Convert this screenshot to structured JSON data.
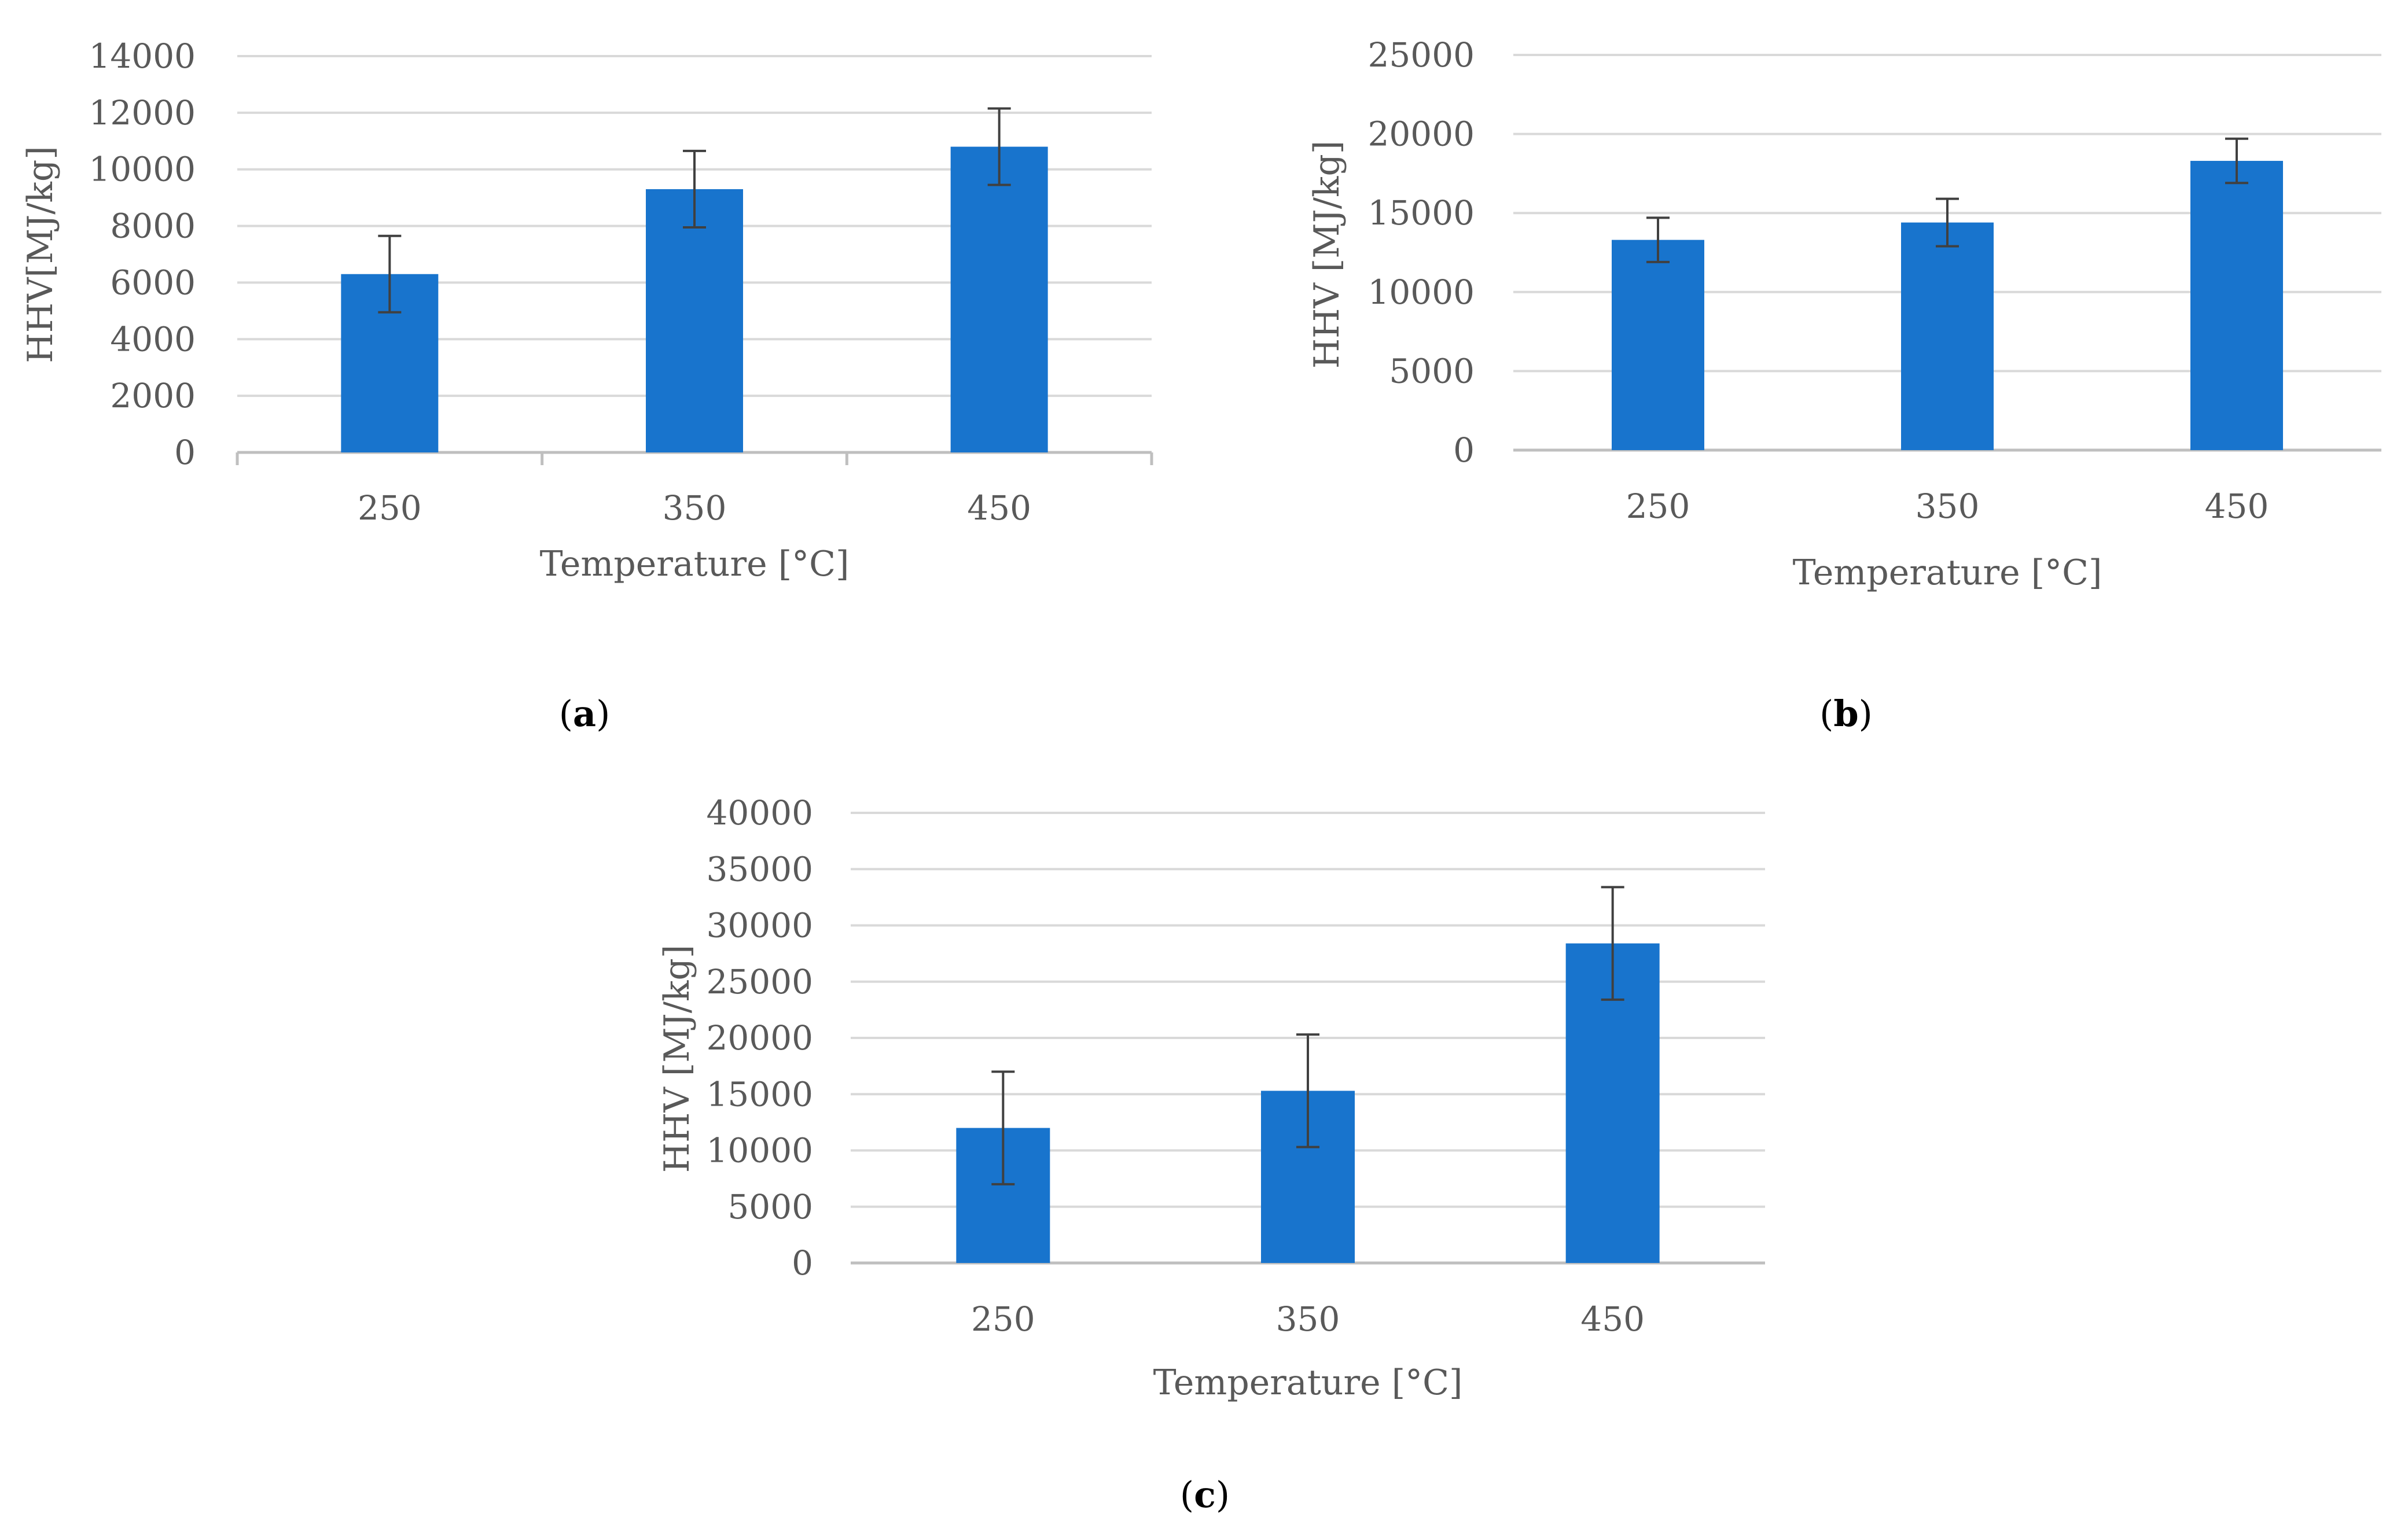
{
  "colors": {
    "bar": "#1874cd",
    "grid": "#d9d9d9",
    "axis": "#bfbfbf",
    "error_bar": "#404040",
    "text": "#595959"
  },
  "chart_data": [
    {
      "type": "bar",
      "panel": "a",
      "caption": {
        "open": "(",
        "letter": "a",
        "close": ")"
      },
      "categories": [
        "250",
        "350",
        "450"
      ],
      "values": [
        6300,
        9300,
        10800
      ],
      "errors": [
        1350,
        1350,
        1350
      ],
      "ylim": [
        0,
        14000
      ],
      "yticks": [
        "0",
        "2000",
        "4000",
        "6000",
        "8000",
        "10000",
        "12000",
        "14000"
      ],
      "xlabel": "Temperature [°C]",
      "ylabel": "HHV[MJ/kg]",
      "grid": true
    },
    {
      "type": "bar",
      "panel": "b",
      "caption": {
        "open": "(",
        "letter": "b",
        "close": ")"
      },
      "categories": [
        "250",
        "350",
        "450"
      ],
      "values": [
        13300,
        14400,
        18300
      ],
      "errors": [
        1400,
        1500,
        1400
      ],
      "ylim": [
        0,
        25000
      ],
      "yticks": [
        "0",
        "5000",
        "10000",
        "15000",
        "20000",
        "25000"
      ],
      "xlabel": "Temperature [°C]",
      "ylabel": "HHV [MJ/kg]",
      "grid": true
    },
    {
      "type": "bar",
      "panel": "c",
      "caption": {
        "open": "(",
        "letter": "c",
        "close": ")"
      },
      "categories": [
        "250",
        "350",
        "450"
      ],
      "values": [
        12000,
        15300,
        28400
      ],
      "errors": [
        5000,
        5000,
        5000
      ],
      "ylim": [
        0,
        40000
      ],
      "yticks": [
        "0",
        "5000",
        "10000",
        "15000",
        "20000",
        "25000",
        "30000",
        "35000",
        "40000"
      ],
      "xlabel": "Temperature [°C]",
      "ylabel": "HHV [MJ/kg]",
      "grid": true
    }
  ]
}
